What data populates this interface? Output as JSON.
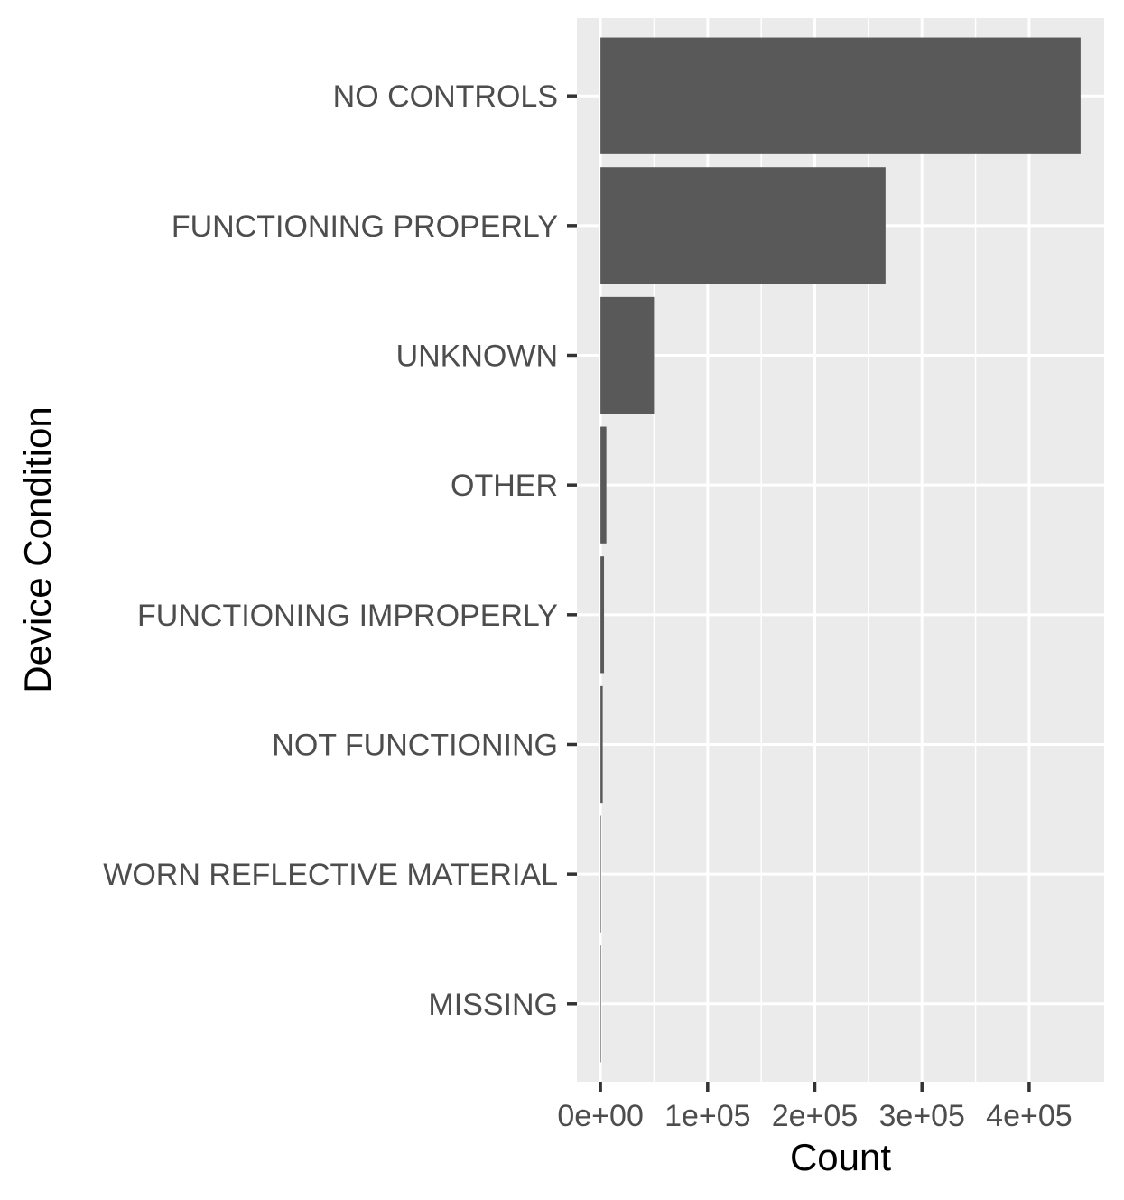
{
  "chart_data": {
    "type": "bar",
    "orientation": "horizontal",
    "title": "",
    "xlabel": "Count",
    "ylabel": "Device Condition",
    "categories": [
      "NO CONTROLS",
      "FUNCTIONING PROPERLY",
      "UNKNOWN",
      "OTHER",
      "FUNCTIONING IMPROPERLY",
      "NOT FUNCTIONING",
      "WORN REFLECTIVE MATERIAL",
      "MISSING"
    ],
    "values": [
      448000,
      266000,
      50000,
      5500,
      3300,
      2100,
      500,
      100
    ],
    "xlim": [
      -22000,
      470000
    ],
    "x_ticks": [
      0,
      100000,
      200000,
      300000,
      400000
    ],
    "x_tick_labels": [
      "0e+00",
      "1e+05",
      "2e+05",
      "3e+05",
      "4e+05"
    ],
    "grid": true,
    "colors": {
      "bar": "#595959",
      "panel_background": "#ebebeb",
      "grid": "#ffffff",
      "tick_text": "#4d4d4d",
      "tick_mark": "#333333"
    }
  }
}
